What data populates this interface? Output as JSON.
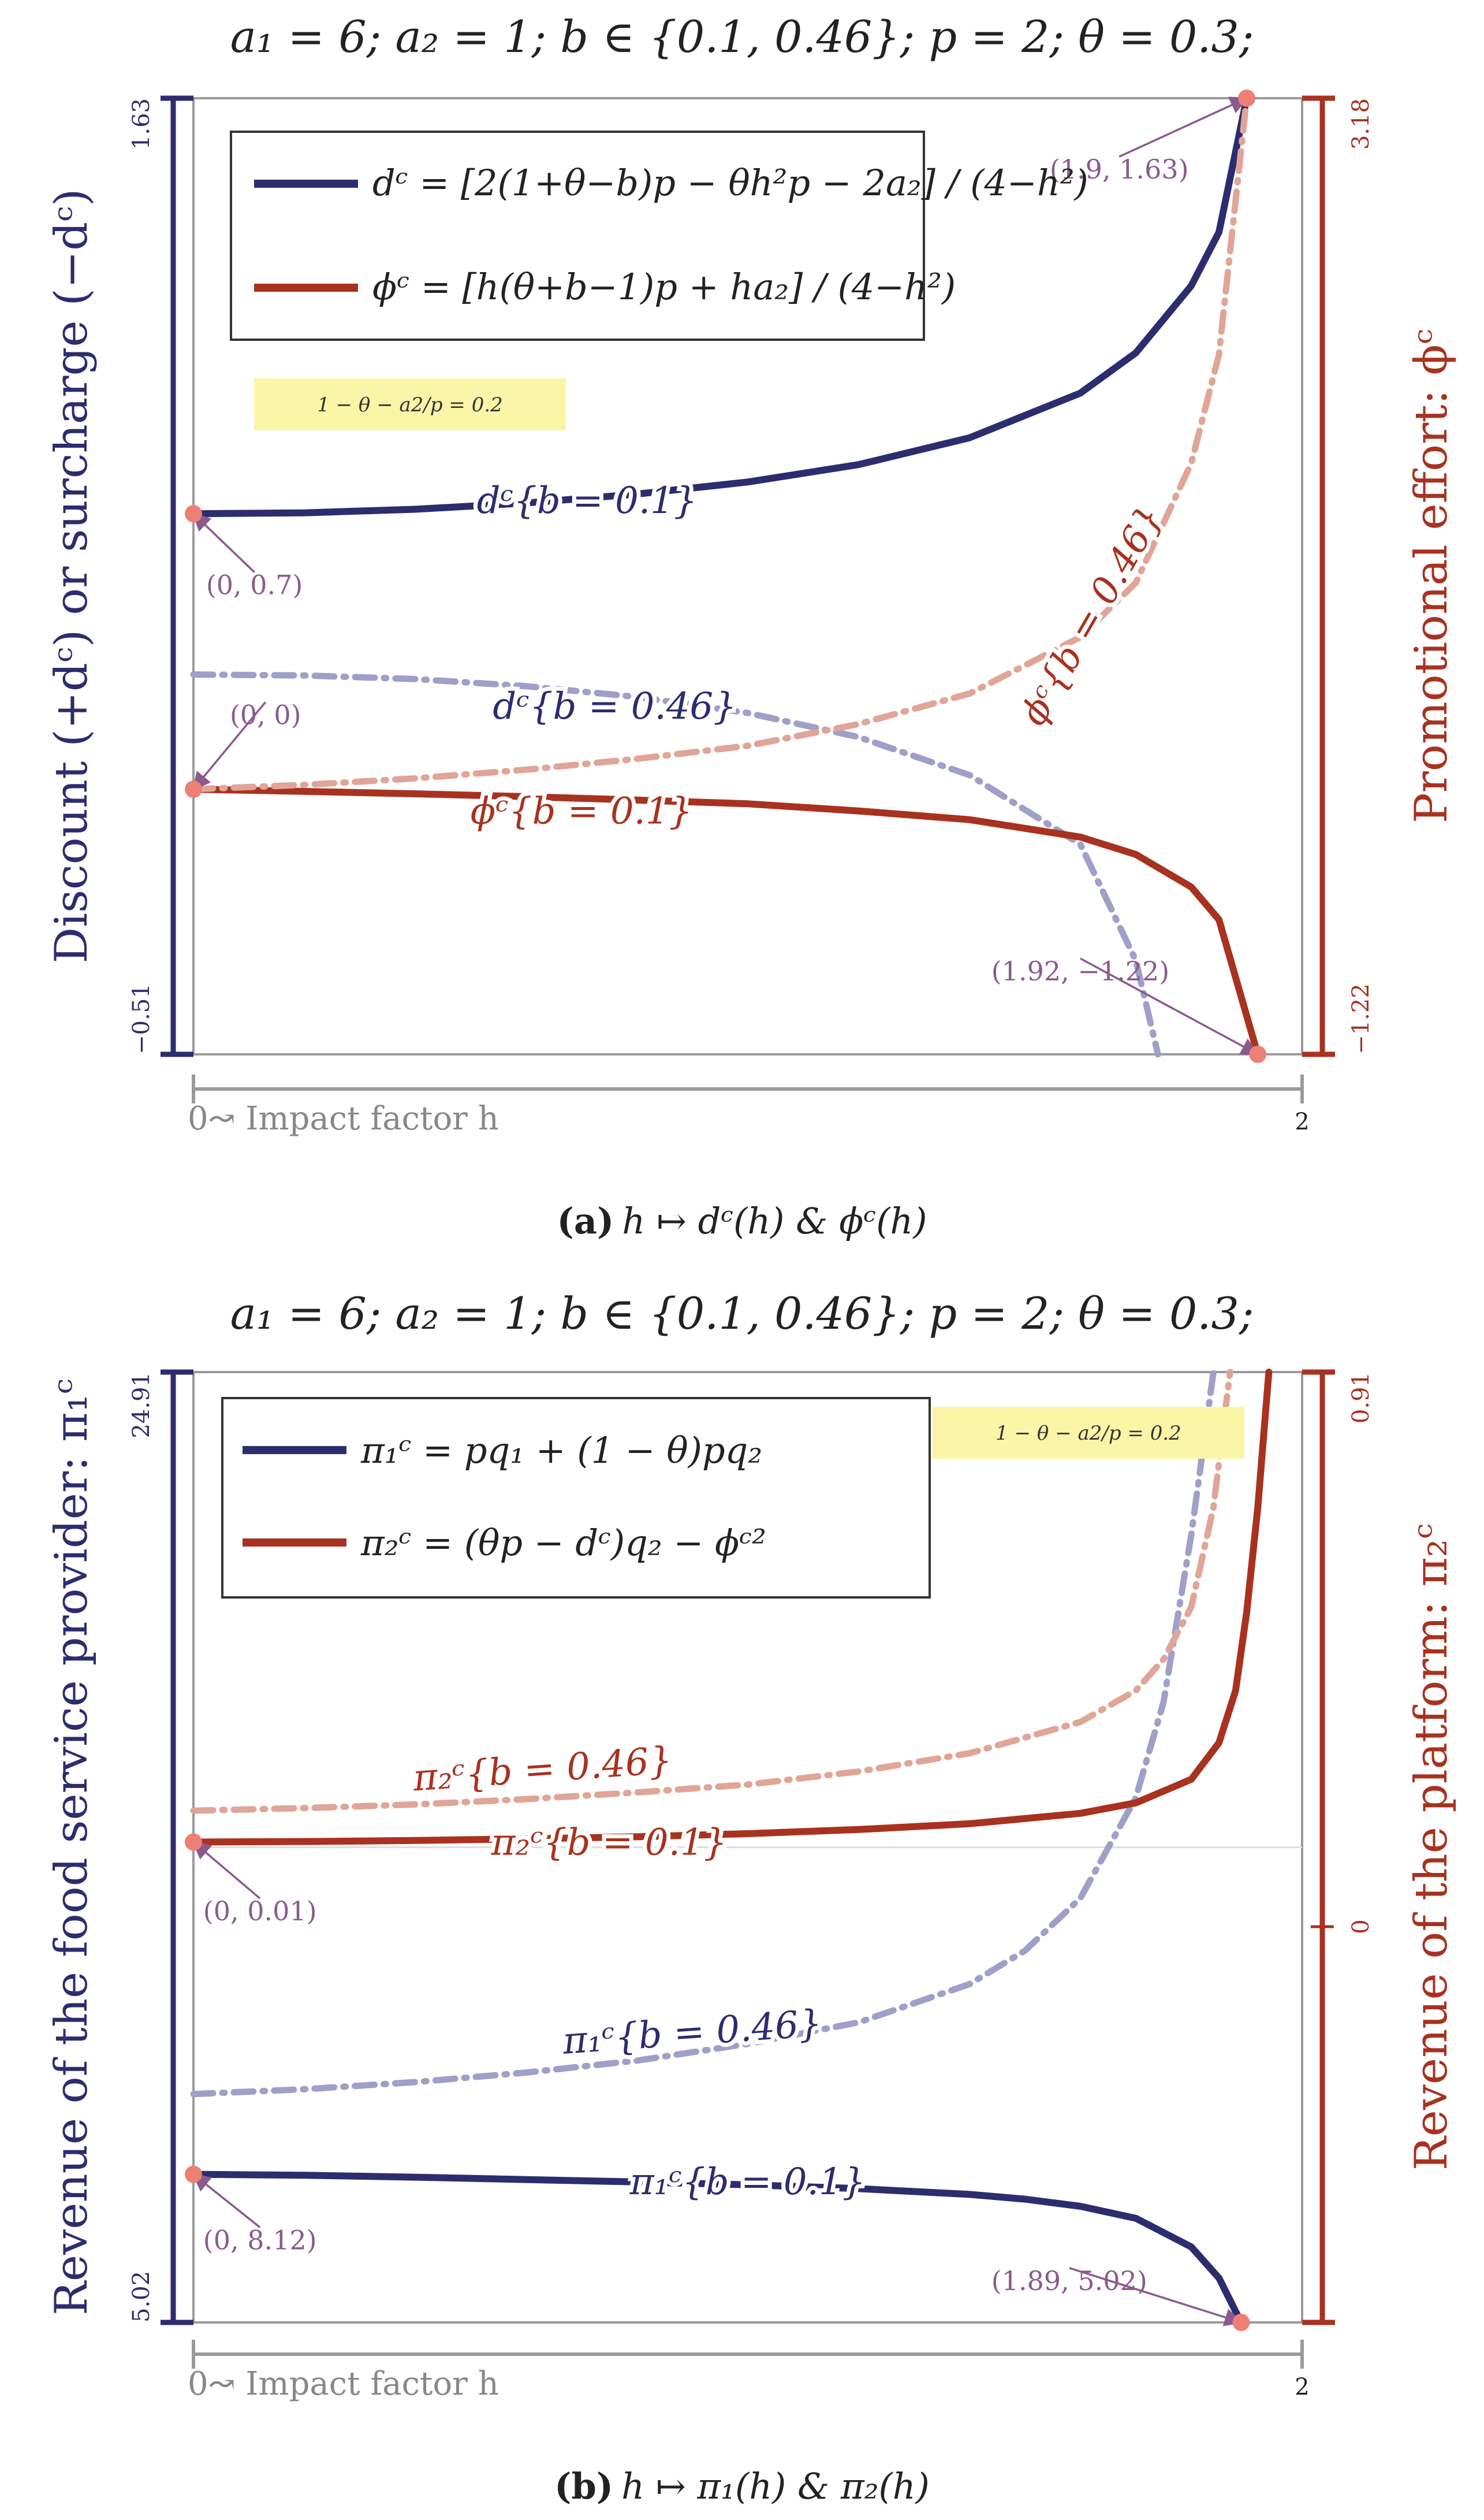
{
  "chart_data": [
    {
      "type": "line",
      "title": "a₁ = 6; a₂ = 1; b ∈ {0.1, 0.46}; p = 2; θ = 0.3;",
      "caption": {
        "tag": "(a)",
        "text": "h ↦ dᶜ(h) & ϕᶜ(h)"
      },
      "xlabel": "0↝ Impact factor h",
      "xlim": [
        0,
        2
      ],
      "x_ticks": [
        "0",
        "2"
      ],
      "ylabel_left": "Discount (+dᶜ) or surcharge (−dᶜ)",
      "ylabel_right": "Promotional effort: ϕᶜ",
      "ylim_left": [
        -0.51,
        1.63
      ],
      "ylim_right": [
        -1.22,
        3.18
      ],
      "left_ticks": [
        "1.63",
        "−0.51"
      ],
      "right_ticks": [
        "3.18",
        "−1.22"
      ],
      "legend": [
        {
          "text": "dᶜ = [2(1+θ−b)p − θh²p − 2a₂] / (4−h²)",
          "color": "#2b2d6e"
        },
        {
          "text": "ϕᶜ = [h(θ+b−1)p + ha₂] / (4−h²)",
          "color": "#a8321f"
        }
      ],
      "note": "1 − θ − a2/p = 0.2",
      "series": [
        {
          "name": "dᶜ{b = 0.1}",
          "axis": "left",
          "style": "solid",
          "color": "#2b2d6e",
          "x": [
            0,
            0.2,
            0.4,
            0.6,
            0.8,
            1.0,
            1.2,
            1.4,
            1.6,
            1.7,
            1.8,
            1.85,
            1.9
          ],
          "y": [
            0.7,
            0.702,
            0.71,
            0.724,
            0.744,
            0.771,
            0.81,
            0.87,
            0.97,
            1.06,
            1.21,
            1.33,
            1.63
          ]
        },
        {
          "name": "dᶜ{b = 0.46}",
          "axis": "left",
          "style": "dashdot",
          "color": "#9fa0c8",
          "x": [
            0,
            0.2,
            0.4,
            0.6,
            0.8,
            1.0,
            1.2,
            1.4,
            1.6,
            1.7,
            1.74
          ],
          "y": [
            0.34,
            0.338,
            0.33,
            0.314,
            0.29,
            0.254,
            0.2,
            0.115,
            -0.04,
            -0.3,
            -0.51
          ]
        },
        {
          "name": "ϕᶜ{b = 0.1}",
          "axis": "right",
          "style": "solid",
          "color": "#a8321f",
          "x": [
            0,
            0.2,
            0.4,
            0.6,
            0.8,
            1.0,
            1.2,
            1.4,
            1.6,
            1.7,
            1.8,
            1.85,
            1.92
          ],
          "y": [
            0,
            -0.01,
            -0.021,
            -0.034,
            -0.05,
            -0.067,
            -0.1,
            -0.14,
            -0.22,
            -0.3,
            -0.45,
            -0.6,
            -1.22
          ]
        },
        {
          "name": "ϕᶜ{b = 0.46}",
          "axis": "right",
          "style": "dashdot",
          "color": "#e0a597",
          "x": [
            0,
            0.2,
            0.4,
            0.6,
            0.8,
            1.0,
            1.2,
            1.4,
            1.6,
            1.7,
            1.8,
            1.85,
            1.9
          ],
          "y": [
            0,
            0.02,
            0.05,
            0.09,
            0.14,
            0.2,
            0.3,
            0.44,
            0.7,
            0.95,
            1.5,
            2.0,
            3.18
          ]
        }
      ],
      "curve_labels": [
        {
          "text": "dᶜ{b = 0.1}",
          "axis": "left",
          "x": 0.71,
          "y": 0.73,
          "color": "#2b2d6e",
          "angle": 0
        },
        {
          "text": "dᶜ{b = 0.46}",
          "axis": "left",
          "x": 0.76,
          "y": 0.27,
          "color": "#2b2d6e",
          "angle": 0
        },
        {
          "text": "ϕᶜ{b = 0.1}",
          "axis": "right",
          "x": 0.7,
          "y": -0.1,
          "color": "#a8321f",
          "angle": 0
        },
        {
          "text": "ϕᶜ{b = 0.46}",
          "axis": "right",
          "x": 1.62,
          "y": 0.8,
          "color": "#a8321f",
          "angle": -60
        }
      ],
      "annotations": [
        {
          "text": "(1.9, 1.63)",
          "axis": "left",
          "x": 1.9,
          "y": 1.63,
          "tx": 1.67,
          "ty": 1.45
        },
        {
          "text": "(0, 0.7)",
          "axis": "left",
          "x": 0,
          "y": 0.7,
          "tx": 0.11,
          "ty": 0.52
        },
        {
          "text": "(0, 0)",
          "axis": "right",
          "x": 0,
          "y": 0,
          "tx": 0.13,
          "ty": 0.3
        },
        {
          "text": "(1.92, −1.22)",
          "axis": "right",
          "x": 1.92,
          "y": -1.22,
          "tx": 1.6,
          "ty": -0.88
        }
      ]
    },
    {
      "type": "line",
      "title": "a₁ = 6; a₂ = 1; b ∈ {0.1, 0.46}; p = 2; θ = 0.3;",
      "caption": {
        "tag": "(b)",
        "text": "h ↦ π₁(h) & π₂(h)"
      },
      "xlabel": "0↝ Impact factor h",
      "xlim": [
        0,
        2
      ],
      "x_ticks": [
        "0",
        "2"
      ],
      "ylabel_left": "Revenue of the food service provider: π₁ᶜ",
      "ylabel_right": "Revenue of the platform: π₂ᶜ",
      "ylim_left": [
        5.02,
        24.91
      ],
      "ylim_right": [
        -0.91,
        0.91
      ],
      "left_ticks": [
        "24.91",
        "5.02"
      ],
      "right_ticks": [
        "0.91",
        "0"
      ],
      "legend": [
        {
          "text": "π₁ᶜ = pq₁ + (1 − θ)pq₂",
          "color": "#2b2d6e"
        },
        {
          "text": "π₂ᶜ = (θp − dᶜ)q₂ − ϕᶜ²",
          "color": "#a8321f"
        }
      ],
      "note": "1 − θ − a2/p = 0.2",
      "series": [
        {
          "name": "π₁ᶜ{b = 0.1}",
          "axis": "left",
          "style": "solid",
          "color": "#2b2d6e",
          "x": [
            0,
            0.2,
            0.4,
            0.6,
            0.8,
            1.0,
            1.2,
            1.4,
            1.5,
            1.6,
            1.7,
            1.8,
            1.85,
            1.89
          ],
          "y": [
            8.12,
            8.1,
            8.06,
            8.01,
            7.96,
            7.9,
            7.82,
            7.7,
            7.6,
            7.45,
            7.2,
            6.6,
            5.95,
            5.02
          ]
        },
        {
          "name": "π₁ᶜ{b = 0.46}",
          "axis": "left",
          "style": "dashdot",
          "color": "#9fa0c8",
          "x": [
            0,
            0.2,
            0.4,
            0.6,
            0.8,
            1.0,
            1.2,
            1.4,
            1.5,
            1.6,
            1.7,
            1.75,
            1.8,
            1.84
          ],
          "y": [
            9.8,
            9.9,
            10.05,
            10.25,
            10.5,
            10.85,
            11.3,
            12.1,
            12.8,
            13.9,
            16.0,
            18.0,
            21.5,
            24.91
          ]
        },
        {
          "name": "π₂ᶜ{b = 0.1}",
          "axis": "right",
          "style": "solid",
          "color": "#a8321f",
          "x": [
            0,
            0.2,
            0.4,
            0.6,
            0.8,
            1.0,
            1.2,
            1.4,
            1.6,
            1.7,
            1.8,
            1.85,
            1.88,
            1.9,
            1.92,
            1.94
          ],
          "y": [
            0.01,
            0.011,
            0.013,
            0.016,
            0.02,
            0.026,
            0.034,
            0.045,
            0.065,
            0.085,
            0.13,
            0.2,
            0.3,
            0.45,
            0.65,
            0.91
          ]
        },
        {
          "name": "π₂ᶜ{b = 0.46}",
          "axis": "right",
          "style": "dashdot",
          "color": "#e0a597",
          "x": [
            0,
            0.2,
            0.4,
            0.6,
            0.8,
            1.0,
            1.2,
            1.4,
            1.6,
            1.7,
            1.75,
            1.8,
            1.84,
            1.87
          ],
          "y": [
            0.07,
            0.075,
            0.082,
            0.092,
            0.105,
            0.12,
            0.145,
            0.18,
            0.24,
            0.3,
            0.36,
            0.46,
            0.65,
            0.91
          ]
        }
      ],
      "curve_labels": [
        {
          "text": "π₁ᶜ{b = 0.1}",
          "axis": "left",
          "x": 1.0,
          "y": 7.97,
          "color": "#2b2d6e",
          "angle": 0
        },
        {
          "text": "π₁ᶜ{b = 0.46}",
          "axis": "left",
          "x": 0.9,
          "y": 11.1,
          "color": "#2b2d6e",
          "angle": -4
        },
        {
          "text": "π₂ᶜ{b = 0.46}",
          "axis": "right",
          "x": 0.63,
          "y": 0.15,
          "color": "#a8321f",
          "angle": -4
        },
        {
          "text": "π₂ᶜ{b = 0.1}",
          "axis": "right",
          "x": 0.75,
          "y": 0.01,
          "color": "#a8321f",
          "angle": 0
        }
      ],
      "annotations": [
        {
          "text": "(0, 0.01)",
          "axis": "right",
          "x": 0,
          "y": 0.01,
          "tx": 0.12,
          "ty": -0.14
        },
        {
          "text": "(0, 8.12)",
          "axis": "left",
          "x": 0,
          "y": 8.12,
          "tx": 0.12,
          "ty": 6.55
        },
        {
          "text": "(1.89, 5.02)",
          "axis": "left",
          "x": 1.89,
          "y": 5.02,
          "tx": 1.58,
          "ty": 5.7
        }
      ]
    }
  ]
}
